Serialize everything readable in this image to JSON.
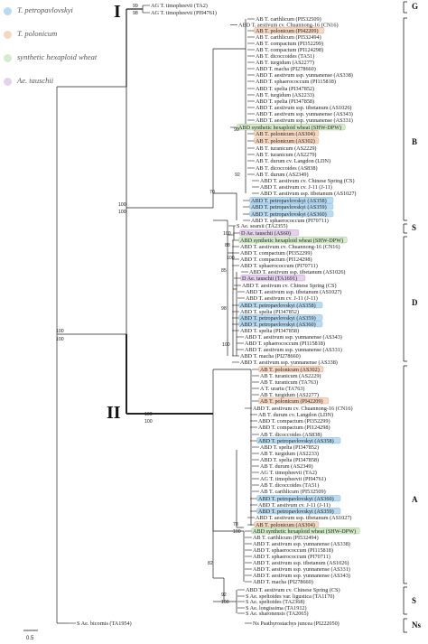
{
  "legend": [
    {
      "label": "T. petropavlovskyi",
      "color": "#b9daf0"
    },
    {
      "label": "T. polonicum",
      "color": "#f6d7c2"
    },
    {
      "label": "synthetic hexaploid wheat",
      "color": "#d5ebcc"
    },
    {
      "label": "Ae. tauschii",
      "color": "#e4d1ec"
    }
  ],
  "group_labels": {
    "I": "I",
    "II": "II"
  },
  "clades": [
    "G",
    "B",
    "S",
    "D",
    "A",
    "S",
    "Ns"
  ],
  "scale_label": "0.5",
  "taxa": [
    {
      "t": "AG T. timopheevii (TA2)",
      "h": null
    },
    {
      "t": "AG T. timopheevii (PI94761)",
      "h": null
    },
    {
      "t": "AB T. carthlicum (PI532509)",
      "h": null
    },
    {
      "t": "ABD T. aestivum cv. Chuannong-16 (CN16)",
      "h": null
    },
    {
      "t": "AB T. polonicum (PI42209)",
      "h": "pol"
    },
    {
      "t": "AB T. carthlicum (PI532494)",
      "h": null
    },
    {
      "t": "AB T. compactum (PI352299)",
      "h": null
    },
    {
      "t": "AB T. compactum (PI124298)",
      "h": null
    },
    {
      "t": "AB T. dicoccoides (TA51)",
      "h": null
    },
    {
      "t": "AB T. turgidum (AS2277)",
      "h": null
    },
    {
      "t": "ABD T. macha (PI278660)",
      "h": null
    },
    {
      "t": "ABD T. aestivum ssp. yunnanense (AS338)",
      "h": null
    },
    {
      "t": "ABD T. sphaerococcum (PI115818)",
      "h": null
    },
    {
      "t": "ABD T. spelta (PI347852)",
      "h": null
    },
    {
      "t": "AB T. turgidum (AS2233)",
      "h": null
    },
    {
      "t": "ABD T. spelta (PI347858)",
      "h": null
    },
    {
      "t": "ABD T. aestivum ssp. tibetanum (AS1026)",
      "h": null
    },
    {
      "t": "ABD T. aestivum ssp. yunnanense (AS343)",
      "h": null
    },
    {
      "t": "ABD T. aestivum ssp. yunnanense (AS331)",
      "h": null
    },
    {
      "t": "ABD synthetic hexaploid wheat (SHW-DPW)",
      "h": "shw"
    },
    {
      "t": "AB T. polonicum (AS304)",
      "h": "pol"
    },
    {
      "t": "AB T. polonicum (AS302)",
      "h": "pol"
    },
    {
      "t": "AB T. turanicum (AS2229)",
      "h": null
    },
    {
      "t": "AB T. turanicum (AS2279)",
      "h": null
    },
    {
      "t": "AB T. durum cv. Langdon (LDN)",
      "h": null
    },
    {
      "t": "AB T. dicoccoides (AS838)",
      "h": null
    },
    {
      "t": "AB T. durum (AS2349)",
      "h": null
    },
    {
      "t": "ABD T. aestivum cv. Chinese Spring (CS)",
      "h": null
    },
    {
      "t": "ABD T. aestivum cv. J-11 (J-11)",
      "h": null
    },
    {
      "t": "ABD T. aestivum ssp. tibetanum (AS1027)",
      "h": null
    },
    {
      "t": "ABD T. petropavlovskyi (AS358)",
      "h": "pet"
    },
    {
      "t": "ABD T. petropavlovskyi (AS359)",
      "h": "pet"
    },
    {
      "t": "ABD T. petropavlovskyi (AS360)",
      "h": "pet"
    },
    {
      "t": "ABD T. sphaerococcum (PI70711)",
      "h": null
    },
    {
      "t": "S Ae. searsii (TA2355)",
      "h": null
    },
    {
      "t": "D Ae. tauschii (AS60)",
      "h": "tau"
    },
    {
      "t": "ABD synthetic hexaploid wheat (SHW-DPW)",
      "h": "shw"
    },
    {
      "t": "ABD T. aestivum cv. Chuannong-16 (CN16)",
      "h": null
    },
    {
      "t": "ABD T. compactum (PI352299)",
      "h": null
    },
    {
      "t": "ABD T. compactum (PI124298)",
      "h": null
    },
    {
      "t": "ABD T. sphaerococcum (PI70711)",
      "h": null
    },
    {
      "t": "ABD T. aestivum ssp. tibetanum (AS1026)",
      "h": null
    },
    {
      "t": "D Ae. tauschii (TA1691)",
      "h": "tau"
    },
    {
      "t": "ABD T. aestivum cv. Chinese Spring (CS)",
      "h": null
    },
    {
      "t": "ABD T. aestivum ssp. tibetanum (AS1027)",
      "h": null
    },
    {
      "t": "ABD T. aestivum cv. J-11 (J-11)",
      "h": null
    },
    {
      "t": "ABD T. petropavlovskyi (AS358)",
      "h": "pet"
    },
    {
      "t": "ABD T. spelta (PI347852)",
      "h": null
    },
    {
      "t": "ABD T. petropavlovskyi (AS359)",
      "h": "pet"
    },
    {
      "t": "ABD T. petropavlovskyi (AS360)",
      "h": "pet"
    },
    {
      "t": "ABD T. spelta (PI347858)",
      "h": null
    },
    {
      "t": "ABD T. aestivum ssp. yunnanense (AS343)",
      "h": null
    },
    {
      "t": "ABD T. sphaerococcum (PI115818)",
      "h": null
    },
    {
      "t": "ABD T. aestivum ssp. yunnanense (AS331)",
      "h": null
    },
    {
      "t": "ABD T. macha (PI278660)",
      "h": null
    },
    {
      "t": "ABD T. aestivum ssp. yunnanense (AS338)",
      "h": null
    },
    {
      "t": "AB T. polonicum (AS302)",
      "h": "pol"
    },
    {
      "t": "AB T. turanicum (AS2229)",
      "h": null
    },
    {
      "t": "AB T. turanicum (TA763)",
      "h": null
    },
    {
      "t": "A T. urartu (TA763)",
      "h": null
    },
    {
      "t": "AB T. turgidum (AS2277)",
      "h": null
    },
    {
      "t": "AB T. polonicum (PI42209)",
      "h": "pol"
    },
    {
      "t": "ABD T. aestivum cv. Chuannong-16 (CN16)",
      "h": null
    },
    {
      "t": "AB T. durum cv. Langdon (LDN)",
      "h": null
    },
    {
      "t": "ABD T. compactum (PI352299)",
      "h": null
    },
    {
      "t": "ABD T. compactum (PI124298)",
      "h": null
    },
    {
      "t": "AB T. dicoccoides (AS838)",
      "h": null
    },
    {
      "t": "ABD T. petropavlovskyi (AS358)",
      "h": "pet"
    },
    {
      "t": "ABD T. spelta (PI347852)",
      "h": null
    },
    {
      "t": "AB T. turgidum (AS2233)",
      "h": null
    },
    {
      "t": "ABD T. spelta (PI347858)",
      "h": null
    },
    {
      "t": "AB T. durum (AS2349)",
      "h": null
    },
    {
      "t": "AG T. timopheevii (TA2)",
      "h": null
    },
    {
      "t": "AG T. timopheevii (PI94761)",
      "h": null
    },
    {
      "t": "AB T. dicoccoides (TA51)",
      "h": null
    },
    {
      "t": "AB T. carthlicum (PI532509)",
      "h": null
    },
    {
      "t": "ABD T. petropavlovskyi (AS360)",
      "h": "pet"
    },
    {
      "t": "ABD T. aestivum cv. J-11 (J-11)",
      "h": null
    },
    {
      "t": "ABD T. petropavlovskyi (AS359)",
      "h": "pet"
    },
    {
      "t": "ABD T. aestivum ssp. tibetanum (AS1027)",
      "h": null
    },
    {
      "t": "AB T. polonicum (AS304)",
      "h": "pol"
    },
    {
      "t": "ABD synthetic hexaploid wheat (SHW-DPW)",
      "h": "shw"
    },
    {
      "t": "AB T. carthlicum (PI532494)",
      "h": null
    },
    {
      "t": "ABD T. aestivum ssp. yunnanense (AS338)",
      "h": null
    },
    {
      "t": "ABD T. sphaerococcum (PI115818)",
      "h": null
    },
    {
      "t": "ABD T. sphaerococcum (PI70711)",
      "h": null
    },
    {
      "t": "ABD T. aestivum ssp. tibetanum (AS1026)",
      "h": null
    },
    {
      "t": "ABD T. aestivum ssp. yunnanense (AS331)",
      "h": null
    },
    {
      "t": "ABD T. aestivum ssp. yunnanense (AS343)",
      "h": null
    },
    {
      "t": "ABD T. macha (PI278660)",
      "h": null
    },
    {
      "t": "ABD T. aestivum cv. Chinese Spring (CS)",
      "h": null
    },
    {
      "t": "S Ae. speltoides var. ligustica (TA1170)",
      "h": null
    },
    {
      "t": "S Ae. speltoides (TA2368)",
      "h": null
    },
    {
      "t": "S Ae. longissima (TA1912)",
      "h": null
    },
    {
      "t": "S Ae. sharonensis (TA2065)",
      "h": null
    },
    {
      "t": "S Ae. bicornis (TA1954)",
      "h": null
    },
    {
      "t": "Ns Psathyrostachys juncea (PI222050)",
      "h": null
    }
  ],
  "bootstrap": [
    {
      "t": "99"
    },
    {
      "t": "98"
    },
    {
      "t": "100"
    },
    {
      "t": "100"
    },
    {
      "t": "90"
    },
    {
      "t": "92"
    },
    {
      "t": "70"
    },
    {
      "t": "100"
    },
    {
      "t": "100"
    },
    {
      "t": "100"
    },
    {
      "t": "88"
    },
    {
      "t": "100"
    },
    {
      "t": "85"
    },
    {
      "t": "98"
    },
    {
      "t": "100"
    },
    {
      "t": "100"
    },
    {
      "t": "100"
    },
    {
      "t": "78"
    },
    {
      "t": "100"
    },
    {
      "t": "82"
    },
    {
      "t": "92"
    },
    {
      "t": "100"
    },
    {
      "t": "100"
    },
    {
      "t": "100"
    },
    {
      "t": "100"
    }
  ]
}
